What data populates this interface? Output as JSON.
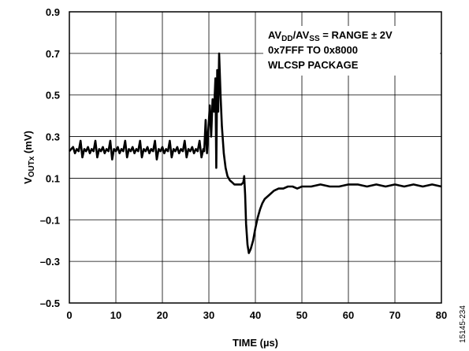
{
  "chart_data": {
    "type": "line",
    "xlabel": "TIME (µs)",
    "ylabel": {
      "main": "V",
      "sub": "OUTx",
      "unit": " (mV)"
    },
    "xlim": [
      0,
      80
    ],
    "ylim": [
      -0.5,
      0.9
    ],
    "x_ticks": [
      "0",
      "10",
      "20",
      "30",
      "40",
      "50",
      "60",
      "70",
      "80"
    ],
    "y_ticks": [
      "0.9",
      "0.7",
      "0.5",
      "0.3",
      "0.1",
      "–0.1",
      "–0.3",
      "–0.5"
    ],
    "grid": true,
    "annotation_lines": [
      [
        {
          "t": "AV"
        },
        {
          "t": "DD",
          "sub": true
        },
        {
          "t": "/AV"
        },
        {
          "t": "SS",
          "sub": true
        },
        {
          "t": " = RANGE ± 2V"
        }
      ],
      [
        {
          "t": "0x7FFF TO 0x8000"
        }
      ],
      [
        {
          "t": "WLCSP PACKAGE"
        }
      ]
    ],
    "figure_id": "15145-234",
    "series": [
      {
        "points": [
          [
            0,
            0.23
          ],
          [
            0.4,
            0.24
          ],
          [
            0.8,
            0.25
          ],
          [
            1.2,
            0.22
          ],
          [
            1.6,
            0.24
          ],
          [
            2.0,
            0.23
          ],
          [
            2.4,
            0.28
          ],
          [
            2.8,
            0.2
          ],
          [
            3.2,
            0.24
          ],
          [
            3.6,
            0.23
          ],
          [
            4.0,
            0.25
          ],
          [
            4.4,
            0.22
          ],
          [
            4.8,
            0.24
          ],
          [
            5.2,
            0.23
          ],
          [
            5.6,
            0.28
          ],
          [
            6.0,
            0.2
          ],
          [
            6.4,
            0.24
          ],
          [
            6.8,
            0.23
          ],
          [
            7.2,
            0.25
          ],
          [
            7.6,
            0.22
          ],
          [
            8.0,
            0.24
          ],
          [
            8.4,
            0.23
          ],
          [
            8.8,
            0.28
          ],
          [
            9.2,
            0.19
          ],
          [
            9.6,
            0.24
          ],
          [
            10.0,
            0.23
          ],
          [
            10.4,
            0.25
          ],
          [
            10.8,
            0.22
          ],
          [
            11.2,
            0.24
          ],
          [
            11.6,
            0.23
          ],
          [
            12.0,
            0.28
          ],
          [
            12.4,
            0.2
          ],
          [
            12.8,
            0.24
          ],
          [
            13.2,
            0.23
          ],
          [
            13.6,
            0.25
          ],
          [
            14.0,
            0.22
          ],
          [
            14.4,
            0.24
          ],
          [
            14.8,
            0.23
          ],
          [
            15.2,
            0.28
          ],
          [
            15.6,
            0.2
          ],
          [
            16.0,
            0.24
          ],
          [
            16.4,
            0.23
          ],
          [
            16.8,
            0.25
          ],
          [
            17.2,
            0.22
          ],
          [
            17.6,
            0.24
          ],
          [
            18.0,
            0.23
          ],
          [
            18.4,
            0.28
          ],
          [
            18.8,
            0.19
          ],
          [
            19.2,
            0.24
          ],
          [
            19.6,
            0.23
          ],
          [
            20.0,
            0.25
          ],
          [
            20.4,
            0.22
          ],
          [
            20.8,
            0.24
          ],
          [
            21.2,
            0.23
          ],
          [
            21.6,
            0.28
          ],
          [
            22.0,
            0.2
          ],
          [
            22.4,
            0.24
          ],
          [
            22.8,
            0.23
          ],
          [
            23.2,
            0.25
          ],
          [
            23.6,
            0.22
          ],
          [
            24.0,
            0.24
          ],
          [
            24.4,
            0.23
          ],
          [
            24.8,
            0.28
          ],
          [
            25.2,
            0.2
          ],
          [
            25.6,
            0.24
          ],
          [
            26.0,
            0.23
          ],
          [
            26.4,
            0.25
          ],
          [
            26.8,
            0.22
          ],
          [
            27.2,
            0.24
          ],
          [
            27.6,
            0.23
          ],
          [
            28.0,
            0.28
          ],
          [
            28.4,
            0.2
          ],
          [
            28.8,
            0.24
          ],
          [
            29.0,
            0.23
          ],
          [
            29.3,
            0.38
          ],
          [
            29.6,
            0.22
          ],
          [
            29.9,
            0.34
          ],
          [
            30.2,
            0.45
          ],
          [
            30.5,
            0.3
          ],
          [
            30.8,
            0.48
          ],
          [
            31.1,
            0.42
          ],
          [
            31.4,
            0.58
          ],
          [
            31.6,
            0.15
          ],
          [
            31.8,
            0.62
          ],
          [
            32.0,
            0.42
          ],
          [
            32.2,
            0.7
          ],
          [
            32.5,
            0.5
          ],
          [
            32.8,
            0.35
          ],
          [
            33.2,
            0.22
          ],
          [
            33.6,
            0.15
          ],
          [
            34.0,
            0.11
          ],
          [
            34.5,
            0.09
          ],
          [
            35.0,
            0.08
          ],
          [
            35.5,
            0.07
          ],
          [
            36.0,
            0.07
          ],
          [
            36.5,
            0.07
          ],
          [
            37.0,
            0.07
          ],
          [
            37.4,
            0.08
          ],
          [
            37.6,
            0.11
          ],
          [
            37.8,
            0.02
          ],
          [
            38.0,
            -0.12
          ],
          [
            38.3,
            -0.22
          ],
          [
            38.6,
            -0.26
          ],
          [
            39.0,
            -0.24
          ],
          [
            39.5,
            -0.2
          ],
          [
            40.0,
            -0.14
          ],
          [
            40.5,
            -0.09
          ],
          [
            41.0,
            -0.05
          ],
          [
            41.5,
            -0.02
          ],
          [
            42.0,
            0.0
          ],
          [
            43.0,
            0.02
          ],
          [
            44.0,
            0.04
          ],
          [
            45.0,
            0.05
          ],
          [
            46.0,
            0.05
          ],
          [
            47.0,
            0.06
          ],
          [
            48.0,
            0.06
          ],
          [
            49.0,
            0.05
          ],
          [
            50.0,
            0.06
          ],
          [
            52.0,
            0.06
          ],
          [
            54.0,
            0.07
          ],
          [
            56.0,
            0.06
          ],
          [
            58.0,
            0.06
          ],
          [
            60.0,
            0.07
          ],
          [
            62.0,
            0.07
          ],
          [
            64.0,
            0.06
          ],
          [
            66.0,
            0.07
          ],
          [
            68.0,
            0.06
          ],
          [
            70.0,
            0.07
          ],
          [
            72.0,
            0.06
          ],
          [
            74.0,
            0.07
          ],
          [
            76.0,
            0.06
          ],
          [
            78.0,
            0.07
          ],
          [
            80.0,
            0.06
          ]
        ]
      }
    ]
  }
}
